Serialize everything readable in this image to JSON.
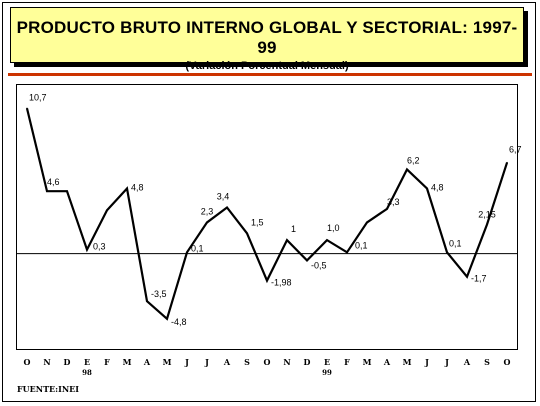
{
  "header": {
    "title": "PRODUCTO BRUTO INTERNO GLOBAL Y SECTORIAL: 1997-99",
    "subtitle": "(Variación Porcentual Mensual)"
  },
  "source": "FUENTE:INEI",
  "colors": {
    "title_bg": "#ffff99",
    "rule": "#cc3300",
    "line": "#000000"
  },
  "chart_data": {
    "type": "line",
    "title": "PRODUCTO BRUTO INTERNO GLOBAL Y SECTORIAL: 1997-99",
    "subtitle": "(Variación Porcentual Mensual)",
    "categories": [
      "O",
      "N",
      "D",
      "E",
      "F",
      "M",
      "A",
      "M",
      "J",
      "J",
      "A",
      "S",
      "O",
      "N",
      "D",
      "E",
      "F",
      "M",
      "A",
      "M",
      "J",
      "J",
      "A",
      "S",
      "O"
    ],
    "year_labels": [
      {
        "index": 3,
        "label": "98"
      },
      {
        "index": 15,
        "label": "99"
      }
    ],
    "values": [
      10.7,
      4.6,
      4.6,
      0.3,
      3.2,
      4.8,
      -3.5,
      -4.8,
      0.1,
      2.3,
      3.4,
      1.5,
      -1.98,
      1.0,
      -0.5,
      1.0,
      0.1,
      2.3,
      3.3,
      6.2,
      4.8,
      0.1,
      -1.7,
      2.15,
      6.7
    ],
    "data_labels": [
      {
        "index": 0,
        "text": "10,7"
      },
      {
        "index": 1,
        "text": "4,6"
      },
      {
        "index": 3,
        "text": "0,3"
      },
      {
        "index": 5,
        "text": "4,8"
      },
      {
        "index": 6,
        "text": "-3,5"
      },
      {
        "index": 7,
        "text": "-4,8"
      },
      {
        "index": 8,
        "text": "0,1"
      },
      {
        "index": 9,
        "text": "2,3"
      },
      {
        "index": 10,
        "text": "3,4"
      },
      {
        "index": 11,
        "text": "1,5"
      },
      {
        "index": 12,
        "text": "-1,98"
      },
      {
        "index": 13,
        "text": "1"
      },
      {
        "index": 14,
        "text": "-0,5"
      },
      {
        "index": 15,
        "text": "1,0"
      },
      {
        "index": 16,
        "text": "0,1"
      },
      {
        "index": 18,
        "text": "3,3"
      },
      {
        "index": 19,
        "text": "6,2"
      },
      {
        "index": 20,
        "text": "4,8"
      },
      {
        "index": 21,
        "text": "0,1"
      },
      {
        "index": 22,
        "text": "-1,7"
      },
      {
        "index": 23,
        "text": "2,15"
      },
      {
        "index": 24,
        "text": "6,7"
      }
    ],
    "ylim": [
      -6.8,
      12.2
    ],
    "zero_line": true,
    "grid": false
  }
}
